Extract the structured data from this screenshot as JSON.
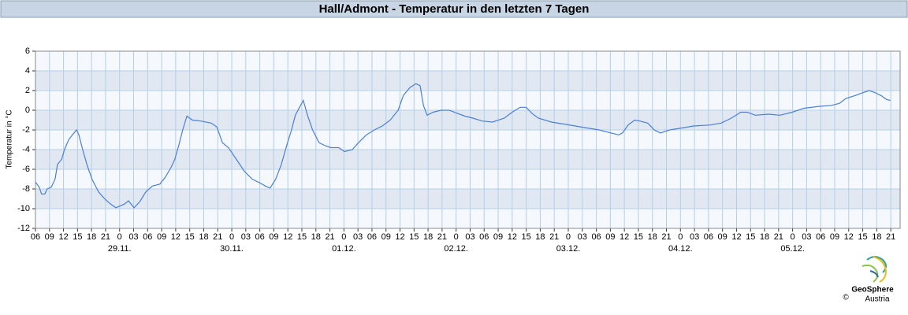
{
  "chart_data": {
    "type": "line",
    "title": "Hall/Admont - Temperatur in den letzten 7 Tagen",
    "ylabel": "Temperatur in °C",
    "x": [
      6.0,
      6.8,
      7.3,
      8.0,
      8.5,
      9.4,
      10.2,
      10.7,
      11.6,
      12.2,
      13.1,
      13.9,
      14.8,
      15.3,
      16.1,
      17.0,
      18.1,
      19.5,
      20.8,
      22.0,
      23.2,
      24.2,
      25.1,
      25.9,
      27.1,
      28.3,
      29.6,
      31.0,
      32.6,
      33.8,
      35.0,
      35.8,
      36.7,
      37.5,
      38.4,
      39.6,
      41.4,
      43.6,
      44.8,
      46.0,
      47.3,
      49.0,
      50.7,
      52.4,
      54.1,
      55.2,
      56.2,
      57.4,
      58.6,
      59.8,
      60.8,
      61.6,
      62.5,
      63.3,
      64.2,
      65.3,
      66.7,
      68.0,
      69.2,
      70.9,
      72.1,
      73.8,
      75.1,
      76.8,
      78.5,
      80.2,
      81.9,
      83.6,
      84.7,
      86.1,
      87.4,
      88.3,
      89.0,
      89.8,
      91.1,
      92.8,
      94.5,
      96.2,
      97.9,
      99.6,
      101.6,
      103.8,
      106.3,
      108.0,
      109.7,
      111.0,
      112.2,
      113.6,
      116.4,
      119.0,
      121.5,
      124.0,
      126.6,
      129.1,
      130.8,
      131.6,
      132.8,
      134.2,
      135.3,
      137.0,
      138.4,
      139.7,
      141.7,
      144.3,
      146.8,
      150.2,
      152.7,
      154.9,
      156.9,
      158.3,
      160.0,
      162.8,
      165.3,
      167.9,
      170.4,
      173.8,
      176.3,
      178.0,
      179.4,
      181.4,
      183.1,
      184.4,
      185.6,
      186.9,
      188.1,
      188.9
    ],
    "values": [
      -7.3,
      -7.8,
      -8.5,
      -8.5,
      -8.0,
      -7.8,
      -7.0,
      -5.5,
      -5.0,
      -4.0,
      -3.0,
      -2.5,
      -2.0,
      -2.5,
      -4.0,
      -5.5,
      -7.0,
      -8.3,
      -9.0,
      -9.5,
      -9.9,
      -9.7,
      -9.5,
      -9.2,
      -9.9,
      -9.3,
      -8.3,
      -7.7,
      -7.5,
      -6.8,
      -5.8,
      -5.0,
      -3.5,
      -2.0,
      -0.6,
      -1.0,
      -1.1,
      -1.3,
      -1.7,
      -3.3,
      -3.8,
      -5.0,
      -6.2,
      -7.0,
      -7.4,
      -7.7,
      -7.9,
      -7.0,
      -5.5,
      -3.5,
      -2.0,
      -0.5,
      0.3,
      1.0,
      -0.5,
      -2.0,
      -3.3,
      -3.6,
      -3.8,
      -3.8,
      -4.2,
      -4.0,
      -3.3,
      -2.5,
      -2.0,
      -1.6,
      -1.0,
      0.0,
      1.5,
      2.3,
      2.7,
      2.5,
      0.5,
      -0.5,
      -0.2,
      0.0,
      0.0,
      -0.3,
      -0.6,
      -0.8,
      -1.1,
      -1.2,
      -0.8,
      -0.2,
      0.3,
      0.3,
      -0.3,
      -0.8,
      -1.2,
      -1.4,
      -1.6,
      -1.8,
      -2.0,
      -2.3,
      -2.5,
      -2.3,
      -1.5,
      -1.0,
      -1.1,
      -1.3,
      -2.0,
      -2.3,
      -2.0,
      -1.8,
      -1.6,
      -1.5,
      -1.3,
      -0.8,
      -0.2,
      -0.2,
      -0.5,
      -0.4,
      -0.5,
      -0.2,
      0.2,
      0.4,
      0.5,
      0.7,
      1.2,
      1.5,
      1.8,
      2.0,
      1.8,
      1.5,
      1.1,
      1.0
    ],
    "color": "#4a7fd6",
    "xlim": [
      6,
      191
    ],
    "xticks": [
      {
        "value": 6,
        "label": "06"
      },
      {
        "value": 9,
        "label": "09"
      },
      {
        "value": 12,
        "label": "12"
      },
      {
        "value": 15,
        "label": "15"
      },
      {
        "value": 18,
        "label": "18"
      },
      {
        "value": 21,
        "label": "21"
      },
      {
        "value": 24,
        "label": "0"
      },
      {
        "value": 27,
        "label": "03"
      },
      {
        "value": 30,
        "label": "06"
      },
      {
        "value": 33,
        "label": "09"
      },
      {
        "value": 36,
        "label": "12"
      },
      {
        "value": 39,
        "label": "15"
      },
      {
        "value": 42,
        "label": "18"
      },
      {
        "value": 45,
        "label": "21"
      },
      {
        "value": 48,
        "label": "0"
      },
      {
        "value": 51,
        "label": "03"
      },
      {
        "value": 54,
        "label": "06"
      },
      {
        "value": 57,
        "label": "09"
      },
      {
        "value": 60,
        "label": "12"
      },
      {
        "value": 63,
        "label": "15"
      },
      {
        "value": 66,
        "label": "18"
      },
      {
        "value": 69,
        "label": "21"
      },
      {
        "value": 72,
        "label": "0"
      },
      {
        "value": 75,
        "label": "03"
      },
      {
        "value": 78,
        "label": "06"
      },
      {
        "value": 81,
        "label": "09"
      },
      {
        "value": 84,
        "label": "12"
      },
      {
        "value": 87,
        "label": "15"
      },
      {
        "value": 90,
        "label": "18"
      },
      {
        "value": 93,
        "label": "21"
      },
      {
        "value": 96,
        "label": "0"
      },
      {
        "value": 99,
        "label": "03"
      },
      {
        "value": 102,
        "label": "06"
      },
      {
        "value": 105,
        "label": "09"
      },
      {
        "value": 108,
        "label": "12"
      },
      {
        "value": 111,
        "label": "15"
      },
      {
        "value": 114,
        "label": "18"
      },
      {
        "value": 117,
        "label": "21"
      },
      {
        "value": 120,
        "label": "0"
      },
      {
        "value": 123,
        "label": "03"
      },
      {
        "value": 126,
        "label": "06"
      },
      {
        "value": 129,
        "label": "09"
      },
      {
        "value": 132,
        "label": "12"
      },
      {
        "value": 135,
        "label": "15"
      },
      {
        "value": 138,
        "label": "18"
      },
      {
        "value": 141,
        "label": "21"
      },
      {
        "value": 144,
        "label": "0"
      },
      {
        "value": 147,
        "label": "03"
      },
      {
        "value": 150,
        "label": "06"
      },
      {
        "value": 153,
        "label": "09"
      },
      {
        "value": 156,
        "label": "12"
      },
      {
        "value": 159,
        "label": "15"
      },
      {
        "value": 162,
        "label": "18"
      },
      {
        "value": 165,
        "label": "21"
      },
      {
        "value": 168,
        "label": "0"
      },
      {
        "value": 171,
        "label": "03"
      },
      {
        "value": 174,
        "label": "06"
      },
      {
        "value": 177,
        "label": "09"
      },
      {
        "value": 180,
        "label": "12"
      },
      {
        "value": 183,
        "label": "15"
      },
      {
        "value": 186,
        "label": "18"
      },
      {
        "value": 189,
        "label": "21"
      }
    ],
    "date_labels": [
      {
        "value": 24,
        "label": "29.11."
      },
      {
        "value": 48,
        "label": "30.11."
      },
      {
        "value": 72,
        "label": "01.12."
      },
      {
        "value": 96,
        "label": "02.12."
      },
      {
        "value": 120,
        "label": "03.12."
      },
      {
        "value": 144,
        "label": "04.12."
      },
      {
        "value": 168,
        "label": "05.12."
      }
    ],
    "ylim": [
      -12,
      6
    ],
    "yticks": [
      6,
      4,
      2,
      0,
      -2,
      -4,
      -6,
      -8,
      -10,
      -12
    ],
    "grid": true,
    "logo_text": [
      "GeoSphere",
      "Austria"
    ],
    "copyright": "©"
  }
}
